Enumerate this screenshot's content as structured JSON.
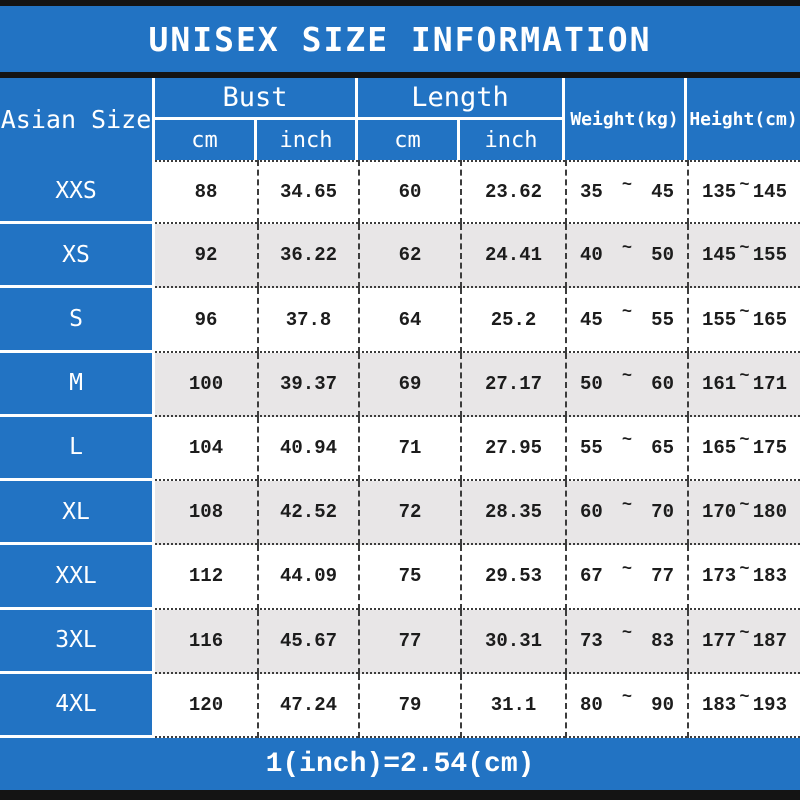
{
  "title": "UNISEX SIZE INFORMATION",
  "footer_note": "1(inch)=2.54(cm)",
  "range_separator": "~",
  "colors": {
    "accent_blue": "#2273c3",
    "alt_row_gray": "#e8e6e7",
    "frame_black": "#141414",
    "text_white": "#ffffff",
    "text_dark": "#1c1c1c"
  },
  "table": {
    "size_header": "Asian Size",
    "group_headers": [
      "Bust",
      "Length"
    ],
    "sub_headers": [
      "cm",
      "inch",
      "cm",
      "inch"
    ],
    "single_headers": [
      "Weight(kg)",
      "Height(cm)"
    ],
    "rows": [
      {
        "size": "XXS",
        "bust_cm": "88",
        "bust_inch": "34.65",
        "length_cm": "60",
        "length_inch": "23.62",
        "weight_min": "35",
        "weight_max": "45",
        "height_min": "135",
        "height_max": "145"
      },
      {
        "size": "XS",
        "bust_cm": "92",
        "bust_inch": "36.22",
        "length_cm": "62",
        "length_inch": "24.41",
        "weight_min": "40",
        "weight_max": "50",
        "height_min": "145",
        "height_max": "155"
      },
      {
        "size": "S",
        "bust_cm": "96",
        "bust_inch": "37.8",
        "length_cm": "64",
        "length_inch": "25.2",
        "weight_min": "45",
        "weight_max": "55",
        "height_min": "155",
        "height_max": "165"
      },
      {
        "size": "M",
        "bust_cm": "100",
        "bust_inch": "39.37",
        "length_cm": "69",
        "length_inch": "27.17",
        "weight_min": "50",
        "weight_max": "60",
        "height_min": "161",
        "height_max": "171"
      },
      {
        "size": "L",
        "bust_cm": "104",
        "bust_inch": "40.94",
        "length_cm": "71",
        "length_inch": "27.95",
        "weight_min": "55",
        "weight_max": "65",
        "height_min": "165",
        "height_max": "175"
      },
      {
        "size": "XL",
        "bust_cm": "108",
        "bust_inch": "42.52",
        "length_cm": "72",
        "length_inch": "28.35",
        "weight_min": "60",
        "weight_max": "70",
        "height_min": "170",
        "height_max": "180"
      },
      {
        "size": "XXL",
        "bust_cm": "112",
        "bust_inch": "44.09",
        "length_cm": "75",
        "length_inch": "29.53",
        "weight_min": "67",
        "weight_max": "77",
        "height_min": "173",
        "height_max": "183"
      },
      {
        "size": "3XL",
        "bust_cm": "116",
        "bust_inch": "45.67",
        "length_cm": "77",
        "length_inch": "30.31",
        "weight_min": "73",
        "weight_max": "83",
        "height_min": "177",
        "height_max": "187"
      },
      {
        "size": "4XL",
        "bust_cm": "120",
        "bust_inch": "47.24",
        "length_cm": "79",
        "length_inch": "31.1",
        "weight_min": "80",
        "weight_max": "90",
        "height_min": "183",
        "height_max": "193"
      }
    ]
  }
}
